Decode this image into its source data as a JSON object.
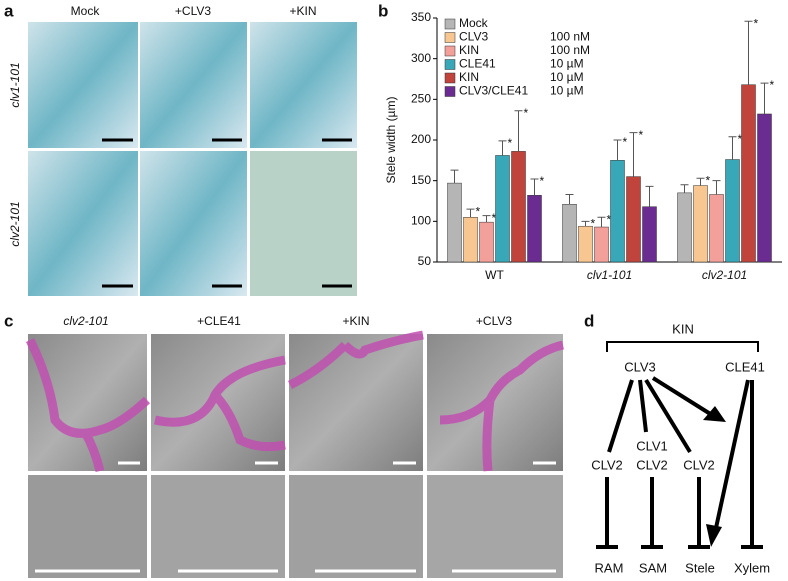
{
  "panel_a": {
    "label": "a",
    "columns": [
      "Mock",
      "+CLV3",
      "+KIN"
    ],
    "rows": [
      "clv1-101",
      "clv2-101"
    ]
  },
  "chart_data": {
    "type": "bar",
    "panel_label": "b",
    "y_label": "Stele width (µm)",
    "categories": [
      "WT",
      "clv1-101",
      "clv2-101"
    ],
    "category_italic": [
      false,
      true,
      true
    ],
    "ylim": [
      50,
      350
    ],
    "yticks": [
      50,
      100,
      150,
      200,
      250,
      300,
      350
    ],
    "grid": false,
    "legend": "top-left",
    "series": [
      {
        "name": "Mock",
        "color": "#b5b5b5",
        "values": [
          147,
          121,
          135
        ],
        "errors": [
          16,
          12,
          10
        ]
      },
      {
        "name": "CLV3",
        "dose": "100 nM",
        "color": "#f8c690",
        "values": [
          105,
          94,
          144
        ],
        "errors": [
          10,
          6,
          9
        ],
        "significance": [
          "*",
          "*",
          "*"
        ]
      },
      {
        "name": "KIN",
        "dose": "100 nM",
        "color": "#f3a09a",
        "values": [
          99,
          93,
          133
        ],
        "errors": [
          8,
          12,
          17
        ],
        "significance": [
          "*",
          "*",
          null
        ]
      },
      {
        "name": "CLE41",
        "dose": "10 µM",
        "color": "#38a7b7",
        "values": [
          181,
          175,
          176
        ],
        "errors": [
          18,
          25,
          28
        ],
        "significance": [
          "*",
          "*",
          "*"
        ]
      },
      {
        "name": "KIN",
        "dose": "10 µM",
        "color": "#c0433c",
        "values": [
          186,
          155,
          268
        ],
        "errors": [
          50,
          54,
          78
        ],
        "significance": [
          "*",
          "*",
          "*"
        ]
      },
      {
        "name": "CLV3/CLE41",
        "dose": "10 µM",
        "color": "#6a2c90",
        "values": [
          132,
          118,
          232
        ],
        "errors": [
          20,
          25,
          38
        ],
        "significance": [
          "*",
          null,
          "*"
        ]
      }
    ]
  },
  "panel_c": {
    "label": "c",
    "columns": [
      "clv2-101",
      "+CLE41",
      "+KIN",
      "+CLV3"
    ]
  },
  "panel_d": {
    "label": "d",
    "top": "KIN",
    "nodes": [
      "CLV3",
      "CLE41",
      "CLV2",
      "CLV1",
      "CLV2",
      "CLV2"
    ],
    "targets": [
      "RAM",
      "SAM",
      "Stele",
      "Xylem"
    ]
  }
}
